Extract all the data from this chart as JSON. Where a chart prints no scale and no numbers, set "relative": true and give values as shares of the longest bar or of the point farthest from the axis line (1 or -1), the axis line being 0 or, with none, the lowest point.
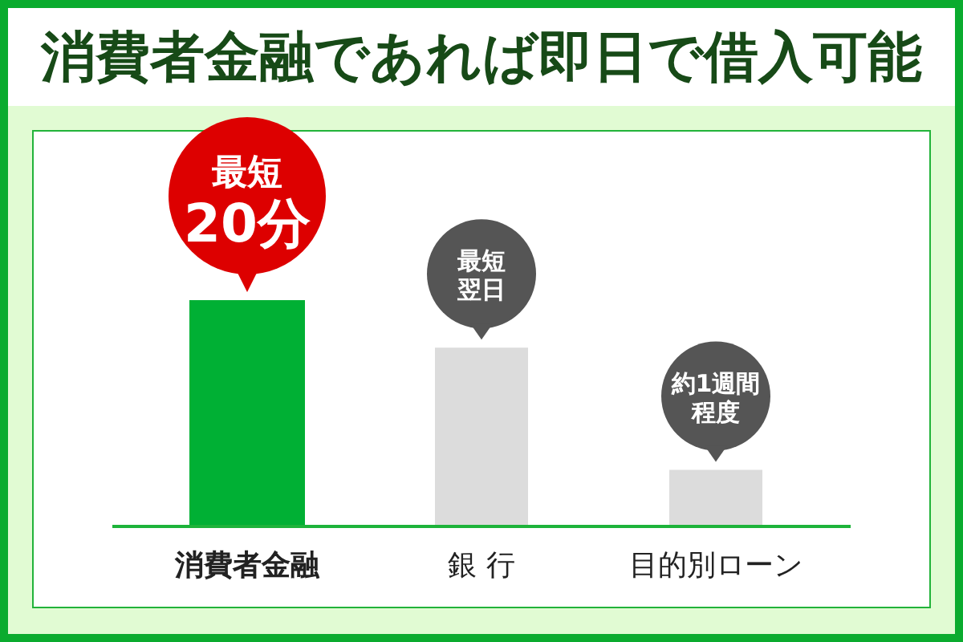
{
  "chart_data": {
    "type": "bar",
    "title": "消費者金融であれば即日で借入可能",
    "categories": [
      "消費者金融",
      "銀 行",
      "目的別ローン"
    ],
    "values": [
      1,
      0.79,
      0.25
    ],
    "colors": [
      "#00b034",
      "#dcdcdc",
      "#dcdcdc"
    ],
    "relative": true,
    "annotations": [
      {
        "text": "最短20分",
        "x": "消費者金融",
        "y": 1
      },
      {
        "text": "最短翌日",
        "x": "銀 行",
        "y": 0.79
      },
      {
        "text": "約1週間程度",
        "x": "目的別ローン",
        "y": 0.25
      }
    ]
  }
}
